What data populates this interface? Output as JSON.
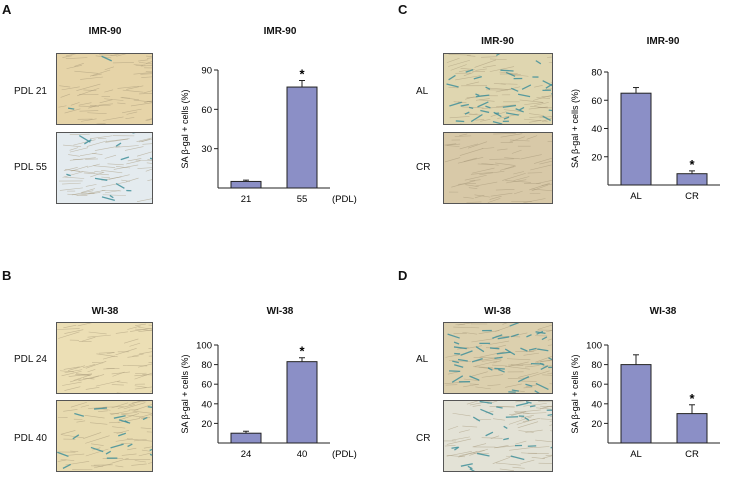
{
  "panels": [
    {
      "label": "A",
      "image_title": "IMR-90",
      "rows": [
        "PDL 21",
        "PDL 55"
      ],
      "bg": [
        "#e6d4a8",
        "#e4ebef"
      ],
      "chart_title": "IMR-90"
    },
    {
      "label": "B",
      "image_title": "WI-38",
      "rows": [
        "PDL 24",
        "PDL 40"
      ],
      "bg": [
        "#ecdfb5",
        "#e8dbb0"
      ],
      "chart_title": "WI-38"
    },
    {
      "label": "C",
      "image_title": "IMR-90",
      "rows": [
        "AL",
        "CR"
      ],
      "bg": [
        "#dfd6b0",
        "#d8c9a8"
      ],
      "chart_title": "IMR-90"
    },
    {
      "label": "D",
      "image_title": "WI-38",
      "rows": [
        "AL",
        "CR"
      ],
      "bg": [
        "#dcd0ae",
        "#e3e2d6"
      ],
      "chart_title": "WI-38"
    }
  ],
  "colors": {
    "bar": "#8b8fc6",
    "bar_edge": "#222222",
    "stain": "#3f8f9a",
    "fiber": "#a39374"
  },
  "chart_data": [
    {
      "type": "bar",
      "title": "IMR-90",
      "ylabel": "SA β-gal + cells (%)",
      "categories": [
        "21",
        "55"
      ],
      "values": [
        5,
        77
      ],
      "errors": [
        1,
        5
      ],
      "significant": [
        "",
        "*"
      ],
      "x_unit": "(PDL)",
      "yticks": [
        30,
        60,
        90
      ],
      "ylim": [
        0,
        90
      ]
    },
    {
      "type": "bar",
      "title": "WI-38",
      "ylabel": "SA β-gal + cells (%)",
      "categories": [
        "24",
        "40"
      ],
      "values": [
        10,
        83
      ],
      "errors": [
        2,
        4
      ],
      "significant": [
        "",
        "*"
      ],
      "x_unit": "(PDL)",
      "yticks": [
        20,
        40,
        60,
        80,
        100
      ],
      "ylim": [
        0,
        100
      ]
    },
    {
      "type": "bar",
      "title": "IMR-90",
      "ylabel": "SA β-gal + cells (%)",
      "categories": [
        "AL",
        "CR"
      ],
      "values": [
        65,
        8
      ],
      "errors": [
        4,
        2
      ],
      "significant": [
        "",
        "*"
      ],
      "x_unit": "",
      "yticks": [
        20,
        40,
        60,
        80
      ],
      "ylim": [
        0,
        80
      ]
    },
    {
      "type": "bar",
      "title": "WI-38",
      "ylabel": "SA β-gal + cells (%)",
      "categories": [
        "AL",
        "CR"
      ],
      "values": [
        80,
        30
      ],
      "errors": [
        10,
        9
      ],
      "significant": [
        "",
        "*"
      ],
      "x_unit": "",
      "yticks": [
        20,
        40,
        60,
        80,
        100
      ],
      "ylim": [
        0,
        100
      ]
    }
  ]
}
